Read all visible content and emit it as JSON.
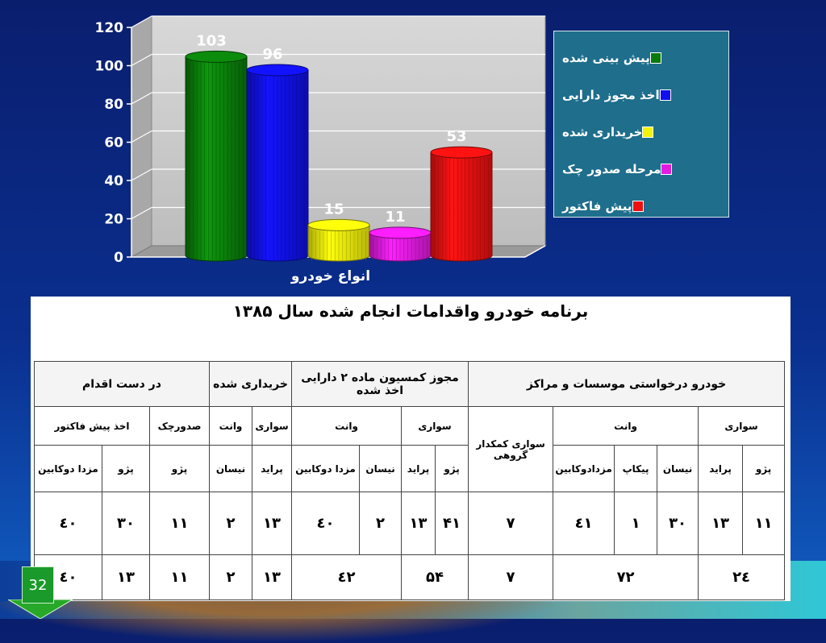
{
  "chart_data": {
    "type": "bar",
    "xlabel": "انواع خودرو",
    "ylim": [
      0,
      120
    ],
    "y_ticks": [
      0,
      20,
      40,
      60,
      80,
      100,
      120
    ],
    "grid": true,
    "legend_position": "right",
    "series": [
      {
        "name": "پیش بینی شده",
        "value": 103,
        "color": "#0a7a0a"
      },
      {
        "name": "اخذ مجوز دارایی",
        "value": 96,
        "color": "#1010ee"
      },
      {
        "name": "خریداری شده",
        "value": 15,
        "color": "#f2f20a"
      },
      {
        "name": "مرحله صدور چک",
        "value": 11,
        "color": "#e21ae2"
      },
      {
        "name": "پیش فاکتور",
        "value": 53,
        "color": "#ee1010"
      }
    ]
  },
  "table": {
    "title": "برنامه خودرو واقدامات انجام شده سال ۱۳۸۵",
    "group_headers": [
      "خودرو درخواستی موسسات و مراکز",
      "مجوز کمسیون ماده ۲ دارایی اخذ شده",
      "خریداری شده",
      "در دست اقدام"
    ],
    "sub_headers": [
      "سواری",
      "وانت",
      "سواری کمکدار گروهی",
      "سواری",
      "وانت",
      "سواری",
      "وانت",
      "صدورچک",
      "اخذ پیش فاکتور"
    ],
    "model_headers": [
      "پژو",
      "پراید",
      "نیسان",
      "پیکاپ",
      "مزدادوکابین",
      "پژو",
      "پراید",
      "نیسان",
      "مزدا دوکابین",
      "پراید",
      "نیسان",
      "پژو",
      "پژو",
      "مزدا دوکابین"
    ],
    "row1": [
      "۱۱",
      "۱۳",
      "۳۰",
      "۱",
      "٤۱",
      "۷",
      "۴۱",
      "۱۳",
      "۲",
      "٤۰",
      "۱۳",
      "۲",
      "۱۱",
      "۳۰",
      "٤۰"
    ],
    "row2": [
      "۲٤",
      "۷۲",
      "۷",
      "۵۴",
      "٤۲",
      "۱۳",
      "۲",
      "۱۱",
      "۱۳",
      "٤۰"
    ]
  },
  "page_number": "32"
}
